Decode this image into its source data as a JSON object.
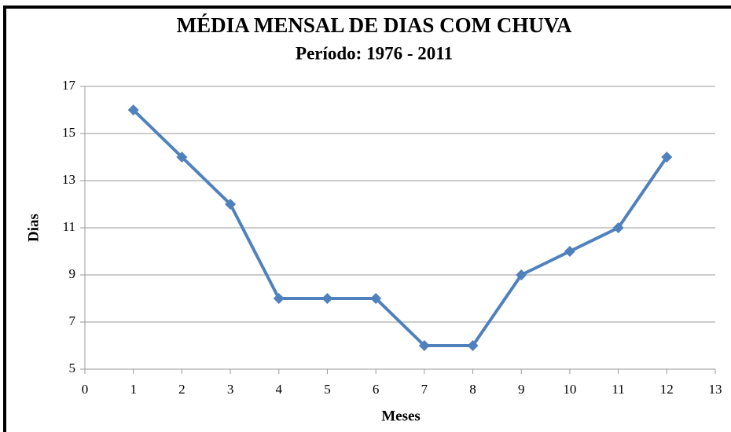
{
  "chart_data": {
    "type": "line",
    "title": "MÉDIA MENSAL DE DIAS COM CHUVA",
    "subtitle": "Período: 1976 - 2011",
    "x_label": "Meses",
    "y_label": "Dias",
    "x": [
      1,
      2,
      3,
      4,
      5,
      6,
      7,
      8,
      9,
      10,
      11,
      12
    ],
    "series": [
      {
        "name": "Dias",
        "color": "#4f81bd",
        "values": [
          16,
          14,
          12,
          8,
          8,
          8,
          6,
          6,
          9,
          10,
          11,
          14
        ]
      }
    ],
    "xlim": [
      0,
      13
    ],
    "xticks": [
      0,
      1,
      2,
      3,
      4,
      5,
      6,
      7,
      8,
      9,
      10,
      11,
      12,
      13
    ],
    "ylim": [
      5,
      17
    ],
    "yticks": [
      5,
      7,
      9,
      11,
      13,
      15,
      17
    ],
    "grid": true
  }
}
